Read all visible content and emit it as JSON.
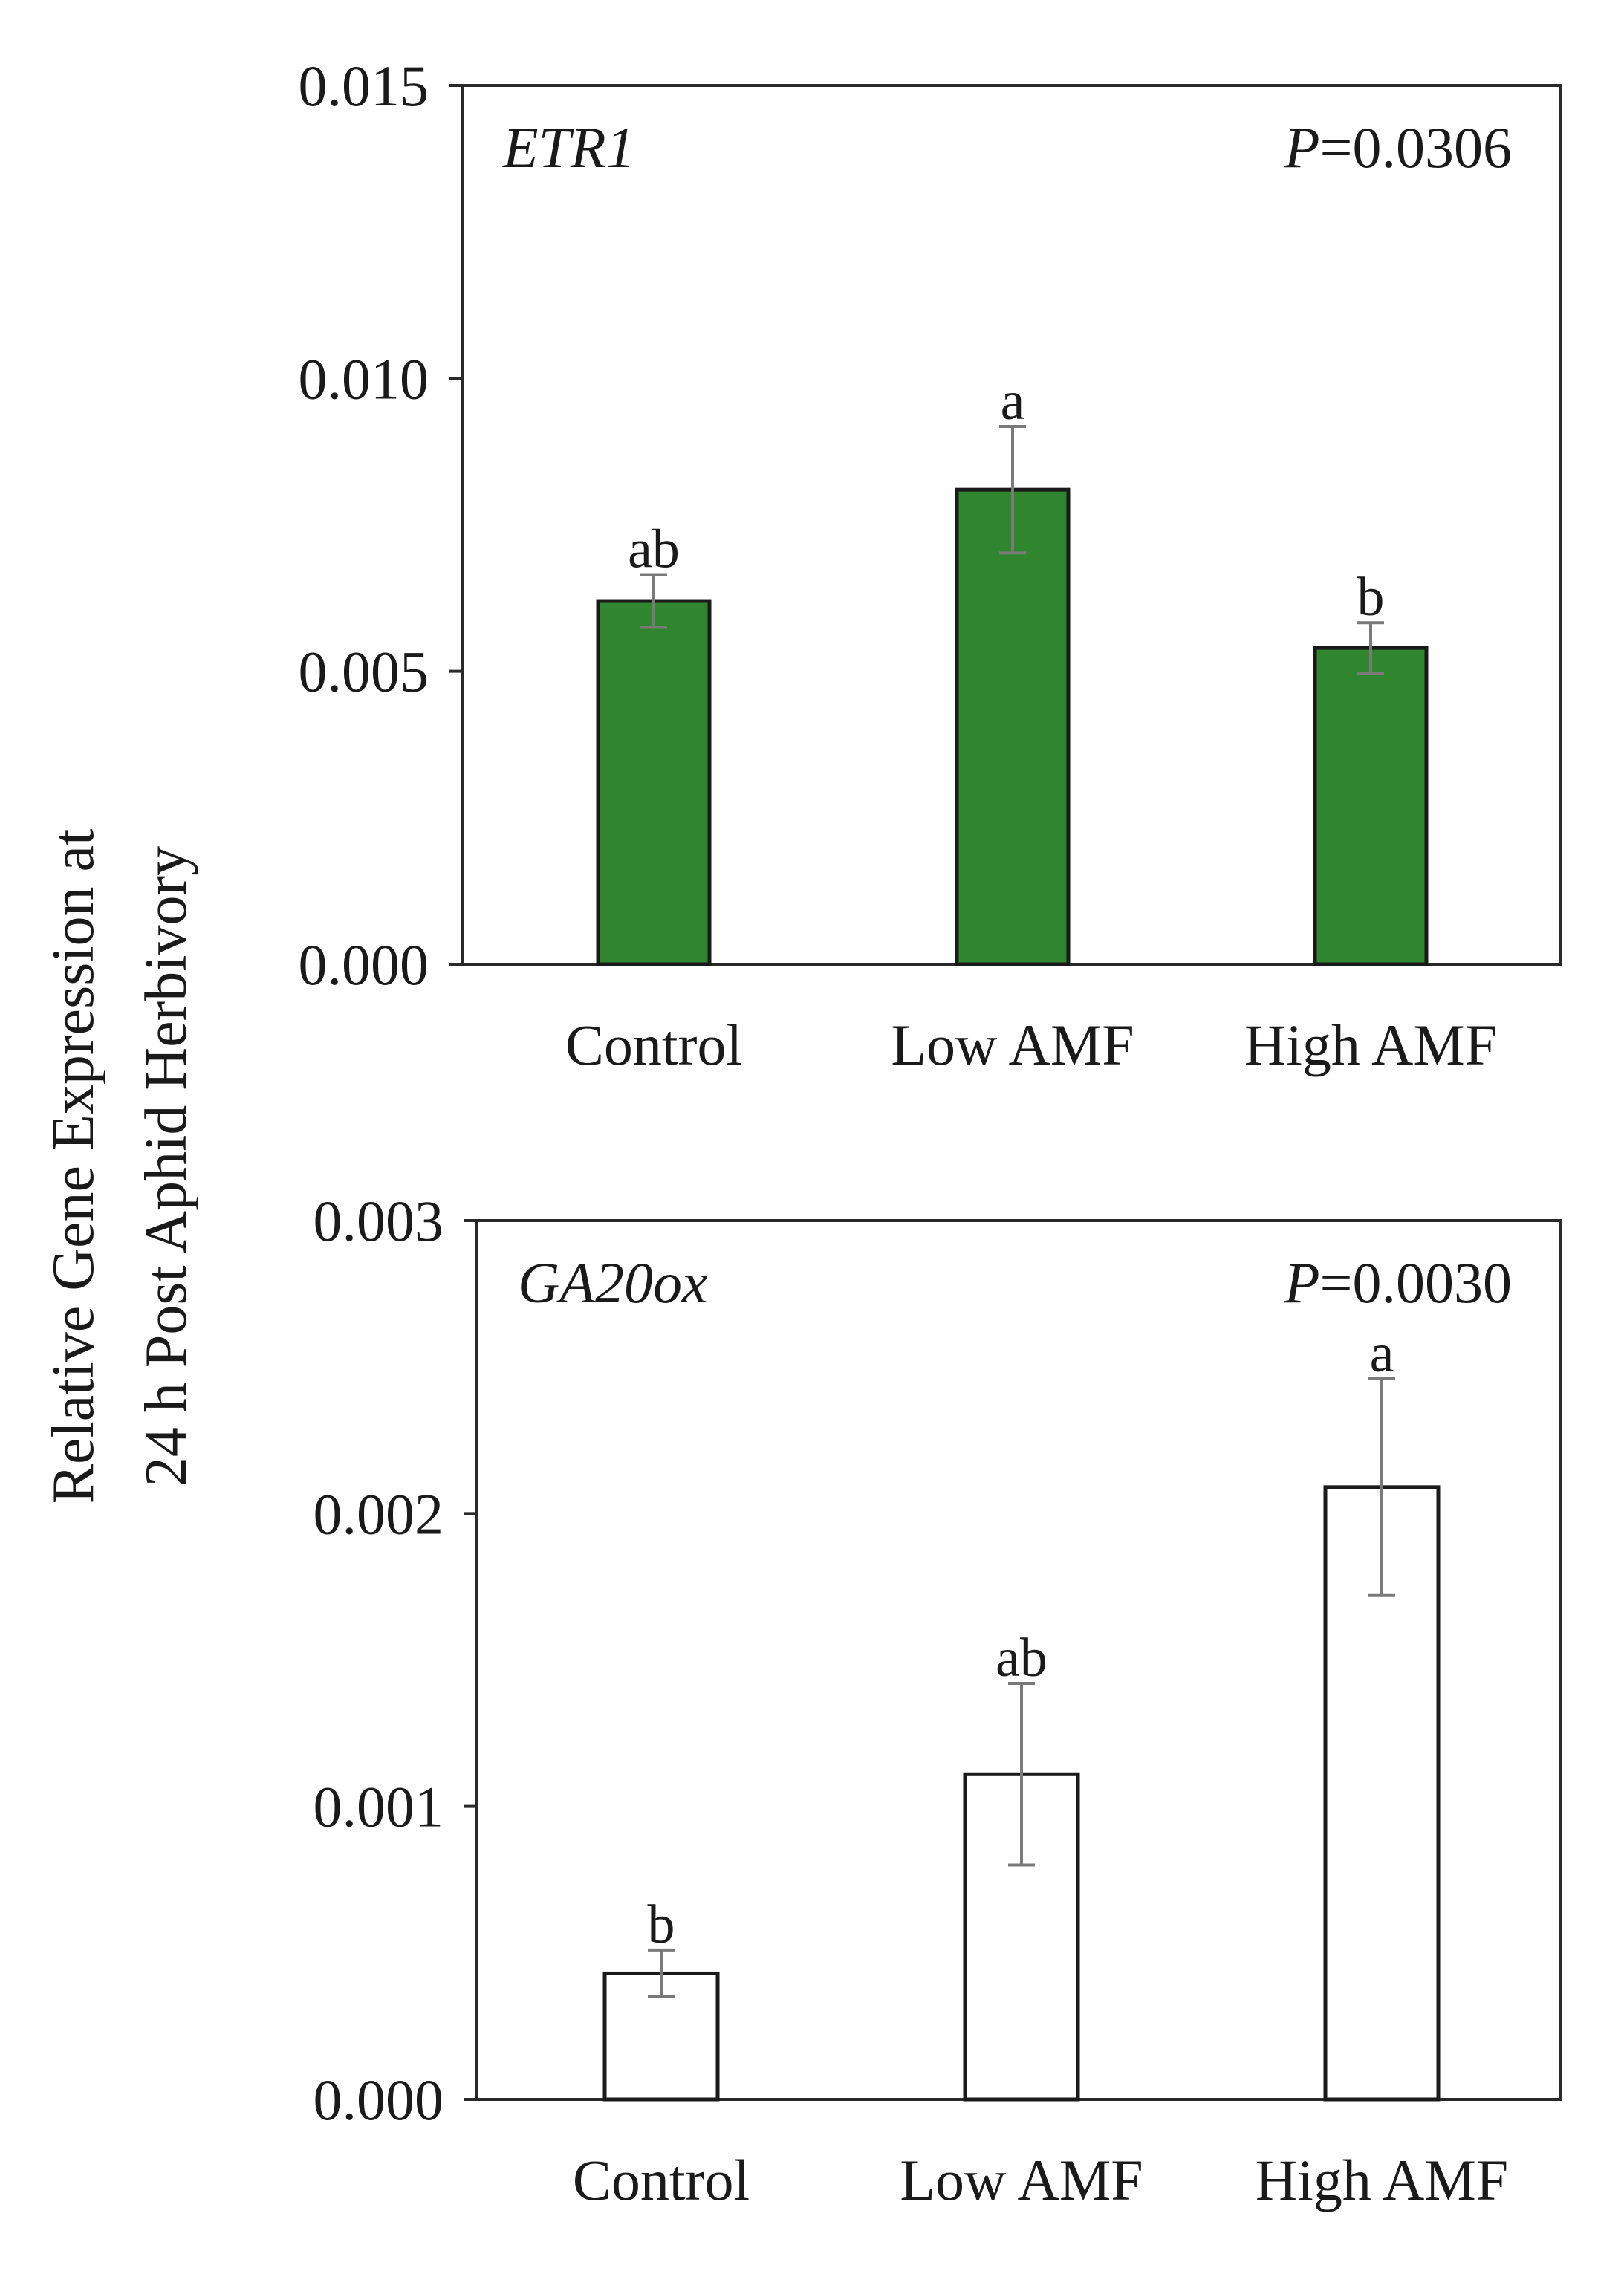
{
  "y_axis_title": {
    "line1": "Relative  Gene Expression  at",
    "line2": "24 h Post Aphid Herbivory"
  },
  "colors": {
    "etr1_bar": "#2f862f",
    "ga20ox_bar": "#ffffff"
  },
  "chart_data": [
    {
      "type": "bar",
      "gene": "ETR1",
      "p_prefix": "P",
      "p_value": "=0.0306",
      "categories": [
        "Control",
        "Low AMF",
        "High AMF"
      ],
      "values": [
        0.0062,
        0.0081,
        0.0054
      ],
      "errors": [
        0.00045,
        0.00108,
        0.00043
      ],
      "letters": [
        "ab",
        "a",
        "b"
      ],
      "ylim": [
        0,
        0.015
      ],
      "yticks": [
        0,
        0.005,
        0.01,
        0.015
      ],
      "ytick_labels": [
        "0.000",
        "0.005",
        "0.010",
        "0.015"
      ],
      "bar_color": "#2f862f",
      "xlabel": "",
      "ylabel": "Relative  Gene Expression  at 24 h Post Aphid Herbivory"
    },
    {
      "type": "bar",
      "gene": "GA20ox",
      "p_prefix": "P",
      "p_value": "=0.0030",
      "categories": [
        "Control",
        "Low AMF",
        "High AMF"
      ],
      "values": [
        0.00043,
        0.00111,
        0.00209
      ],
      "errors": [
        8e-05,
        0.00031,
        0.00037
      ],
      "letters": [
        "b",
        "ab",
        "a"
      ],
      "ylim": [
        0,
        0.003
      ],
      "yticks": [
        0,
        0.001,
        0.002,
        0.003
      ],
      "ytick_labels": [
        "0.000",
        "0.001",
        "0.002",
        "0.003"
      ],
      "bar_color": "#ffffff",
      "xlabel": "",
      "ylabel": "Relative  Gene Expression  at 24 h Post Aphid Herbivory"
    }
  ]
}
